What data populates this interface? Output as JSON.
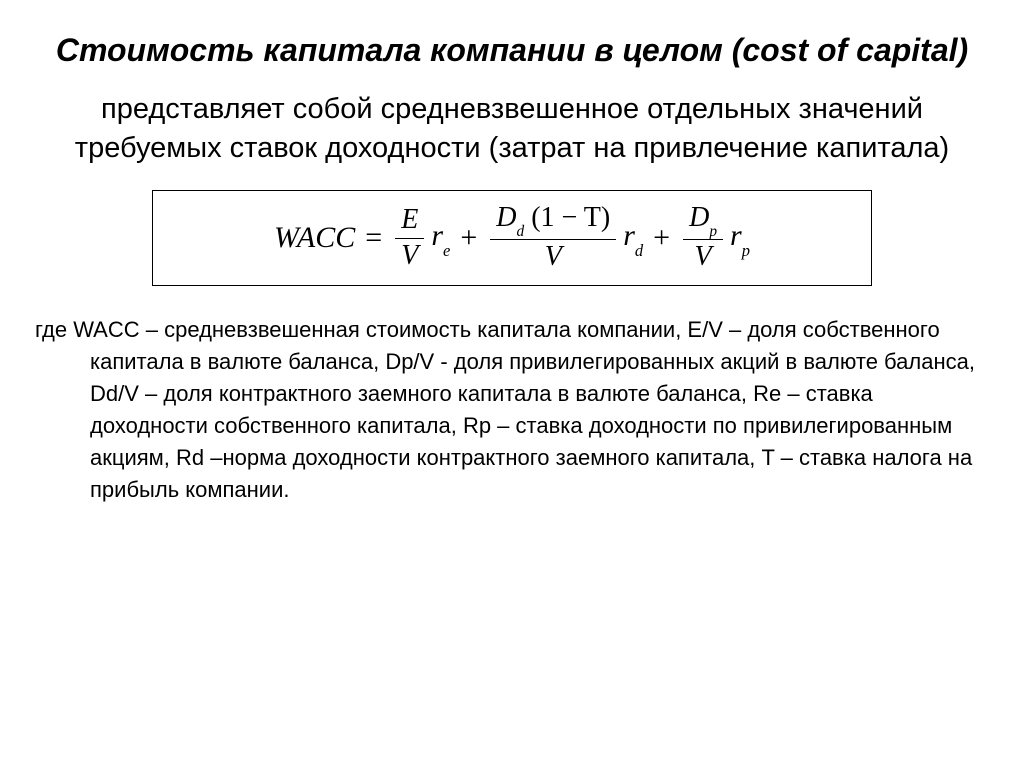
{
  "title": "Стоимость капитала компании в целом (cost of capital)",
  "subtitle": "представляет собой средневзвешенное отдельных значений требуемых ставок доходности (затрат на привлечение капитала)",
  "formula": {
    "lhs": "WACC",
    "eq": "=",
    "plus": "+",
    "term1": {
      "num": "E",
      "den": "V",
      "coef_base": "r",
      "coef_sub": "e"
    },
    "term2": {
      "num_a": "D",
      "num_a_sub": "d",
      "num_b": "(1 − T)",
      "den": "V",
      "coef_base": "r",
      "coef_sub": "d"
    },
    "term3": {
      "num_base": "D",
      "num_sub": "p",
      "den": "V",
      "coef_base": "r",
      "coef_sub": "p"
    }
  },
  "legend": "где WACC – средневзвешенная стоимость капитала компании, E/V – доля собственного капитала в валюте баланса, Dp/V - доля привилегированных акций в валюте баланса, Dd/V – доля контрактного заемного капитала в валюте баланса, Re – ставка доходности собственного капитала, Rp – ставка доходности по привилегированным акциям, Rd –норма доходности контрактного заемного капитала, T – ставка налога на прибыль компании.",
  "colors": {
    "bg": "#ffffff",
    "text": "#000000",
    "border": "#000000"
  },
  "fontsizes": {
    "title": 32,
    "subtitle": 29,
    "formula": 30,
    "legend": 22
  }
}
